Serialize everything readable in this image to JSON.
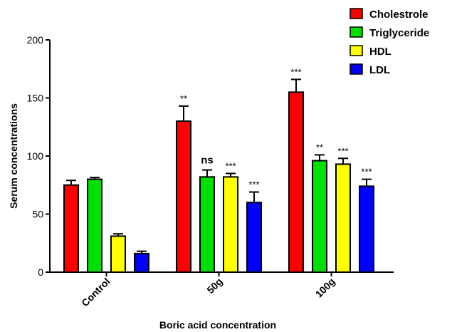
{
  "chart_data": {
    "type": "bar",
    "title": "",
    "xlabel": "Boric acid concentration",
    "ylabel": "Serum concentrations",
    "ylim": [
      0,
      200
    ],
    "yticks": [
      "0",
      "50",
      "100",
      "150",
      "200"
    ],
    "categories": [
      "Control",
      "50g",
      "100g"
    ],
    "series": [
      {
        "name": "Cholestrole",
        "color": "#ff0000",
        "values": [
          75,
          130,
          155
        ],
        "errors": [
          4,
          13,
          11
        ],
        "annotations": [
          "",
          "**",
          "***"
        ]
      },
      {
        "name": "Triglyceride",
        "color": "#00e000",
        "values": [
          80,
          82,
          96
        ],
        "errors": [
          1.5,
          6,
          5
        ],
        "annotations": [
          "",
          "ns",
          "**"
        ]
      },
      {
        "name": "HDL",
        "color": "#ffff00",
        "values": [
          31,
          82,
          93
        ],
        "errors": [
          2,
          3,
          5
        ],
        "annotations": [
          "",
          "***",
          "***"
        ]
      },
      {
        "name": "LDL",
        "color": "#0000ff",
        "values": [
          16,
          60,
          74
        ],
        "errors": [
          2,
          9,
          6
        ],
        "annotations": [
          "",
          "***",
          "***"
        ]
      }
    ],
    "legend_position": "top-right",
    "grid": false
  }
}
